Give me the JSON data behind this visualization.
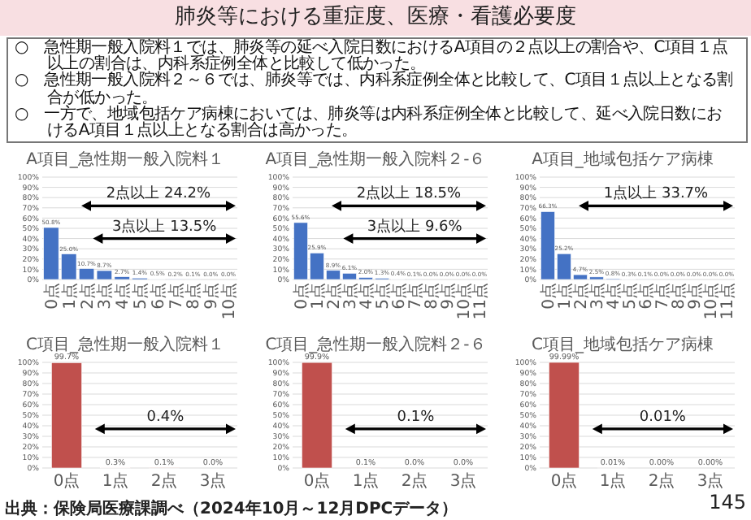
{
  "chart_data": [
    {
      "type": "other",
      "title": "肺炎等における重症度、医療・看護必要度",
      "annotations": [
        "○　急性期一般入院料１では、肺炎等の延べ入院日数におけるA項目の２点以上の割合や、C項目１点以上の割合は、内科系症例全体と比較して低かった。",
        "○　急性期一般入院料２～６では、肺炎等では、内科系症例全体と比較して、C項目１点以上となる割合が低かった。",
        "○　一方で、地域包括ケア病棟においては、肺炎等は内科系症例全体と比較して、延べ入院日数におけるA項目１点以上となる割合は高かった。",
        "出典：保険局医療課調べ（2024年10月～12月DPCデータ）",
        "145"
      ]
    },
    {
      "type": "bar",
      "title": "A項目_急性期一般入院料１",
      "categories": [
        "0点",
        "1点",
        "2点",
        "3点",
        "4点",
        "5点",
        "6点",
        "7点",
        "8点",
        "9点",
        "10点"
      ],
      "values": [
        50.8,
        25.0,
        10.7,
        8.7,
        2.7,
        1.4,
        0.5,
        0.2,
        0.1,
        0.0,
        0.0
      ],
      "value_labels": [
        "50.8%",
        "25.0%",
        "10.7%",
        "8.7%",
        "2.7%",
        "1.4%",
        "0.5%",
        "0.2%",
        "0.1%",
        "0.0%",
        "0.0%"
      ],
      "color": "#4472c4",
      "ylim": [
        0,
        100
      ],
      "yticks": [
        {
          "value": 0,
          "label": "0%"
        },
        {
          "value": 10,
          "label": "10%"
        },
        {
          "value": 20,
          "label": "20%"
        },
        {
          "value": 30,
          "label": "30%"
        },
        {
          "value": 40,
          "label": "40%"
        },
        {
          "value": 50,
          "label": "50%"
        },
        {
          "value": 60,
          "label": "60%"
        },
        {
          "value": 70,
          "label": "70%"
        },
        {
          "value": 80,
          "label": "80%"
        },
        {
          "value": 90,
          "label": "90%"
        },
        {
          "value": 100,
          "label": "100%"
        }
      ],
      "grid": "y",
      "annotations": [
        "2点以上 24.2%",
        "3点以上 13.5%"
      ]
    },
    {
      "type": "bar",
      "title": "A項目_急性期一般入院料２-６",
      "categories": [
        "0点",
        "1点",
        "2点",
        "3点",
        "4点",
        "5点",
        "6点",
        "7点",
        "8点",
        "9点",
        "10点",
        "11点"
      ],
      "values": [
        55.6,
        25.9,
        8.9,
        6.1,
        2.0,
        1.3,
        0.4,
        0.1,
        0.0,
        0.0,
        0.0,
        0.0
      ],
      "value_labels": [
        "55.6%",
        "25.9%",
        "8.9%",
        "6.1%",
        "2.0%",
        "1.3%",
        "0.4%",
        "0.1%",
        "0.0%",
        "0.0%",
        "0.0%",
        "0.0%"
      ],
      "color": "#4472c4",
      "ylim": [
        0,
        100
      ],
      "yticks": [
        {
          "value": 0,
          "label": "0%"
        },
        {
          "value": 10,
          "label": "10%"
        },
        {
          "value": 20,
          "label": "20%"
        },
        {
          "value": 30,
          "label": "30%"
        },
        {
          "value": 40,
          "label": "40%"
        },
        {
          "value": 50,
          "label": "50%"
        },
        {
          "value": 60,
          "label": "60%"
        },
        {
          "value": 70,
          "label": "70%"
        },
        {
          "value": 80,
          "label": "80%"
        },
        {
          "value": 90,
          "label": "90%"
        },
        {
          "value": 100,
          "label": "100%"
        }
      ],
      "grid": "y",
      "annotations": [
        "2点以上 18.5%",
        "3点以上 9.6%"
      ]
    },
    {
      "type": "bar",
      "title": "A項目_地域包括ケア病棟",
      "categories": [
        "0点",
        "1点",
        "2点",
        "3点",
        "4点",
        "5点",
        "6点",
        "7点",
        "8点",
        "9点",
        "10点",
        "11点"
      ],
      "values": [
        66.3,
        25.2,
        4.7,
        2.5,
        0.8,
        0.3,
        0.1,
        0.0,
        0.0,
        0.0,
        0.0,
        0.0
      ],
      "value_labels": [
        "66.3%",
        "25.2%",
        "4.7%",
        "2.5%",
        "0.8%",
        "0.3%",
        "0.1%",
        "0.0%",
        "0.0%",
        "0.0%",
        "0.0%",
        "0.0%"
      ],
      "color": "#4472c4",
      "ylim": [
        0,
        100
      ],
      "yticks": [
        {
          "value": 0,
          "label": "0%"
        },
        {
          "value": 10,
          "label": "10%"
        },
        {
          "value": 20,
          "label": "20%"
        },
        {
          "value": 30,
          "label": "30%"
        },
        {
          "value": 40,
          "label": "40%"
        },
        {
          "value": 50,
          "label": "50%"
        },
        {
          "value": 60,
          "label": "60%"
        },
        {
          "value": 70,
          "label": "70%"
        },
        {
          "value": 80,
          "label": "80%"
        },
        {
          "value": 90,
          "label": "90%"
        },
        {
          "value": 100,
          "label": "100%"
        }
      ],
      "grid": "y",
      "annotations": [
        "1点以上 33.7%"
      ]
    },
    {
      "type": "bar",
      "title": "C項目_急性期一般入院料１",
      "categories": [
        "0点",
        "1点",
        "2点",
        "3点"
      ],
      "values": [
        99.7,
        0.3,
        0.1,
        0.0
      ],
      "value_labels": [
        "99.7%",
        "0.3%",
        "0.1%",
        "0.0%"
      ],
      "color": "#c0504d",
      "ylim": [
        0,
        100
      ],
      "yticks": [
        {
          "value": 0,
          "label": "0%"
        },
        {
          "value": 10,
          "label": "10%"
        },
        {
          "value": 20,
          "label": "20%"
        },
        {
          "value": 30,
          "label": "30%"
        },
        {
          "value": 40,
          "label": "40%"
        },
        {
          "value": 50,
          "label": "50%"
        },
        {
          "value": 60,
          "label": "60%"
        },
        {
          "value": 70,
          "label": "70%"
        },
        {
          "value": 80,
          "label": "80%"
        },
        {
          "value": 90,
          "label": "90%"
        },
        {
          "value": 100,
          "label": "100%"
        }
      ],
      "grid": "y",
      "annotations": [
        "0.4%"
      ]
    },
    {
      "type": "bar",
      "title": "C項目_急性期一般入院料２-６",
      "categories": [
        "0点",
        "1点",
        "2点",
        "3点"
      ],
      "values": [
        99.9,
        0.1,
        0.0,
        0.0
      ],
      "value_labels": [
        "99.9%",
        "0.1%",
        "0.0%",
        "0.0%"
      ],
      "color": "#c0504d",
      "ylim": [
        0,
        100
      ],
      "yticks": [
        {
          "value": 0,
          "label": "0%"
        },
        {
          "value": 10,
          "label": "10%"
        },
        {
          "value": 20,
          "label": "20%"
        },
        {
          "value": 30,
          "label": "30%"
        },
        {
          "value": 40,
          "label": "40%"
        },
        {
          "value": 50,
          "label": "50%"
        },
        {
          "value": 60,
          "label": "60%"
        },
        {
          "value": 70,
          "label": "70%"
        },
        {
          "value": 80,
          "label": "80%"
        },
        {
          "value": 90,
          "label": "90%"
        },
        {
          "value": 100,
          "label": "100%"
        }
      ],
      "grid": "y",
      "annotations": [
        "0.1%"
      ]
    },
    {
      "type": "bar",
      "title": "C項目_地域包括ケア病棟",
      "categories": [
        "0点",
        "1点",
        "2点",
        "3点"
      ],
      "values": [
        99.99,
        0.01,
        0.0,
        0.0
      ],
      "value_labels": [
        "99.99%",
        "0.01%",
        "0.00%",
        "0.00%"
      ],
      "color": "#c0504d",
      "ylim": [
        0,
        100
      ],
      "yticks": [
        {
          "value": 0,
          "label": "0%"
        },
        {
          "value": 10,
          "label": "10%"
        },
        {
          "value": 20,
          "label": "20%"
        },
        {
          "value": 30,
          "label": "30%"
        },
        {
          "value": 40,
          "label": "40%"
        },
        {
          "value": 50,
          "label": "50%"
        },
        {
          "value": 60,
          "label": "60%"
        },
        {
          "value": 70,
          "label": "70%"
        },
        {
          "value": 80,
          "label": "80%"
        },
        {
          "value": 90,
          "label": "90%"
        },
        {
          "value": 100,
          "label": "100%"
        }
      ],
      "grid": "y",
      "annotations": [
        "0.01%"
      ]
    }
  ]
}
